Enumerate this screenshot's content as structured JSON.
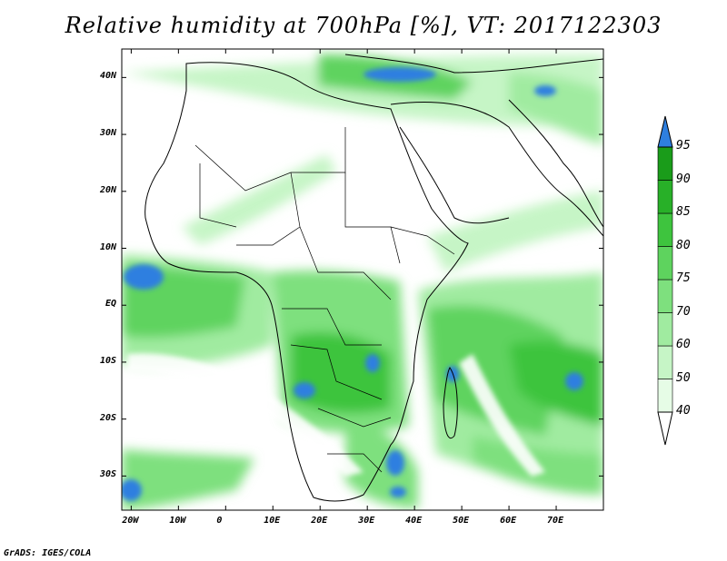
{
  "title": "Relative humidity at 700hPa [%], VT: 2017122303",
  "footer": "GrADS: IGES/COLA",
  "map": {
    "lat_labels": [
      "40N",
      "30N",
      "20N",
      "10N",
      "EQ",
      "10S",
      "20S",
      "30S"
    ],
    "lat_values": [
      40,
      30,
      20,
      10,
      0,
      -10,
      -20,
      -30
    ],
    "lon_labels": [
      "20W",
      "10W",
      "0",
      "10E",
      "20E",
      "30E",
      "40E",
      "50E",
      "60E",
      "70E"
    ],
    "lon_values": [
      -20,
      -10,
      0,
      10,
      20,
      30,
      40,
      50,
      60,
      70
    ],
    "lon_range": [
      -22,
      80
    ],
    "lat_range": [
      -36,
      45
    ]
  },
  "colorbar": {
    "levels": [
      "40",
      "50",
      "60",
      "70",
      "75",
      "80",
      "85",
      "90",
      "95"
    ],
    "colors": [
      "#e6fce6",
      "#c6f5c6",
      "#a0eba0",
      "#7ee07e",
      "#5ed35e",
      "#3ec43e",
      "#28b028",
      "#1a9c1a",
      "#2e7fe0"
    ],
    "top_arrow_color": "#2e7fe0",
    "bottom_arrow_color": "#ffffff"
  },
  "colors": {
    "land_outline": "#000000",
    "frame": "#000000"
  }
}
